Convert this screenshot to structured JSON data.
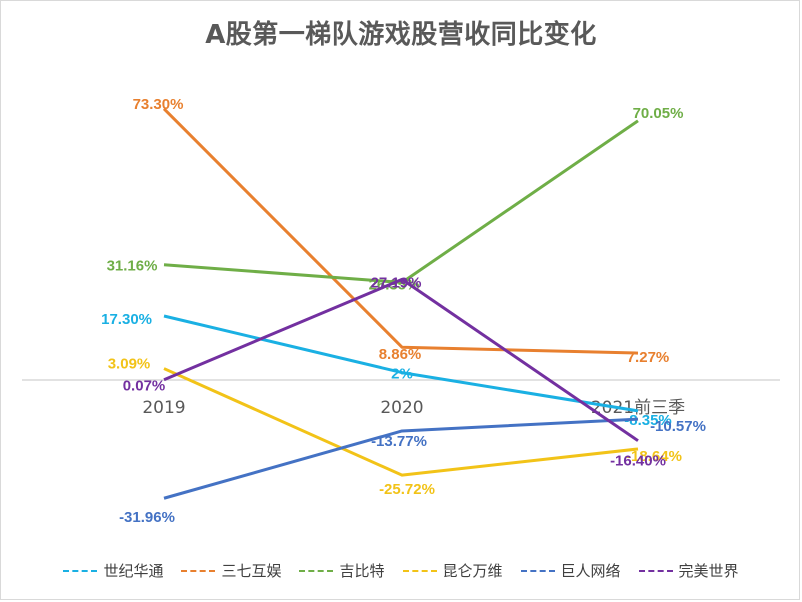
{
  "chart_data": {
    "type": "line",
    "title": "A股第一梯队游戏股营收同比变化",
    "categories": [
      "2019",
      "2020",
      "2021前三季"
    ],
    "xlabel": "",
    "ylabel": "",
    "ylim": [
      -40,
      80
    ],
    "grid": false,
    "legend_position": "bottom",
    "series": [
      {
        "name": "世纪华通",
        "color": "#1AB0E3",
        "values": [
          17.3,
          2,
          -8.35
        ],
        "labels": [
          "17.30%",
          "2%",
          "-8.35%"
        ]
      },
      {
        "name": "三七互娱",
        "color": "#E8802F",
        "values": [
          73.3,
          8.86,
          7.27
        ],
        "labels": [
          "73.30%",
          "8.86%",
          "7.27%"
        ]
      },
      {
        "name": "吉比特",
        "color": "#6FAE47",
        "values": [
          31.16,
          26.35,
          70.05
        ],
        "labels": [
          "31.16%",
          "26.35%",
          "70.05%"
        ]
      },
      {
        "name": "昆仑万维",
        "color": "#F2C318",
        "values": [
          3.09,
          -25.72,
          -18.64
        ],
        "labels": [
          "3.09%",
          "-25.72%",
          "-18.64%"
        ]
      },
      {
        "name": "巨人网络",
        "color": "#4472C4",
        "values": [
          -31.96,
          -13.77,
          -10.57
        ],
        "labels": [
          "-31.96%",
          "-13.77%",
          "-10.57%"
        ]
      },
      {
        "name": "完美世界",
        "color": "#7330A0",
        "values": [
          0.07,
          27.19,
          -16.4
        ],
        "labels": [
          "0.07%",
          "27.19%",
          "-16.40%"
        ]
      }
    ]
  }
}
